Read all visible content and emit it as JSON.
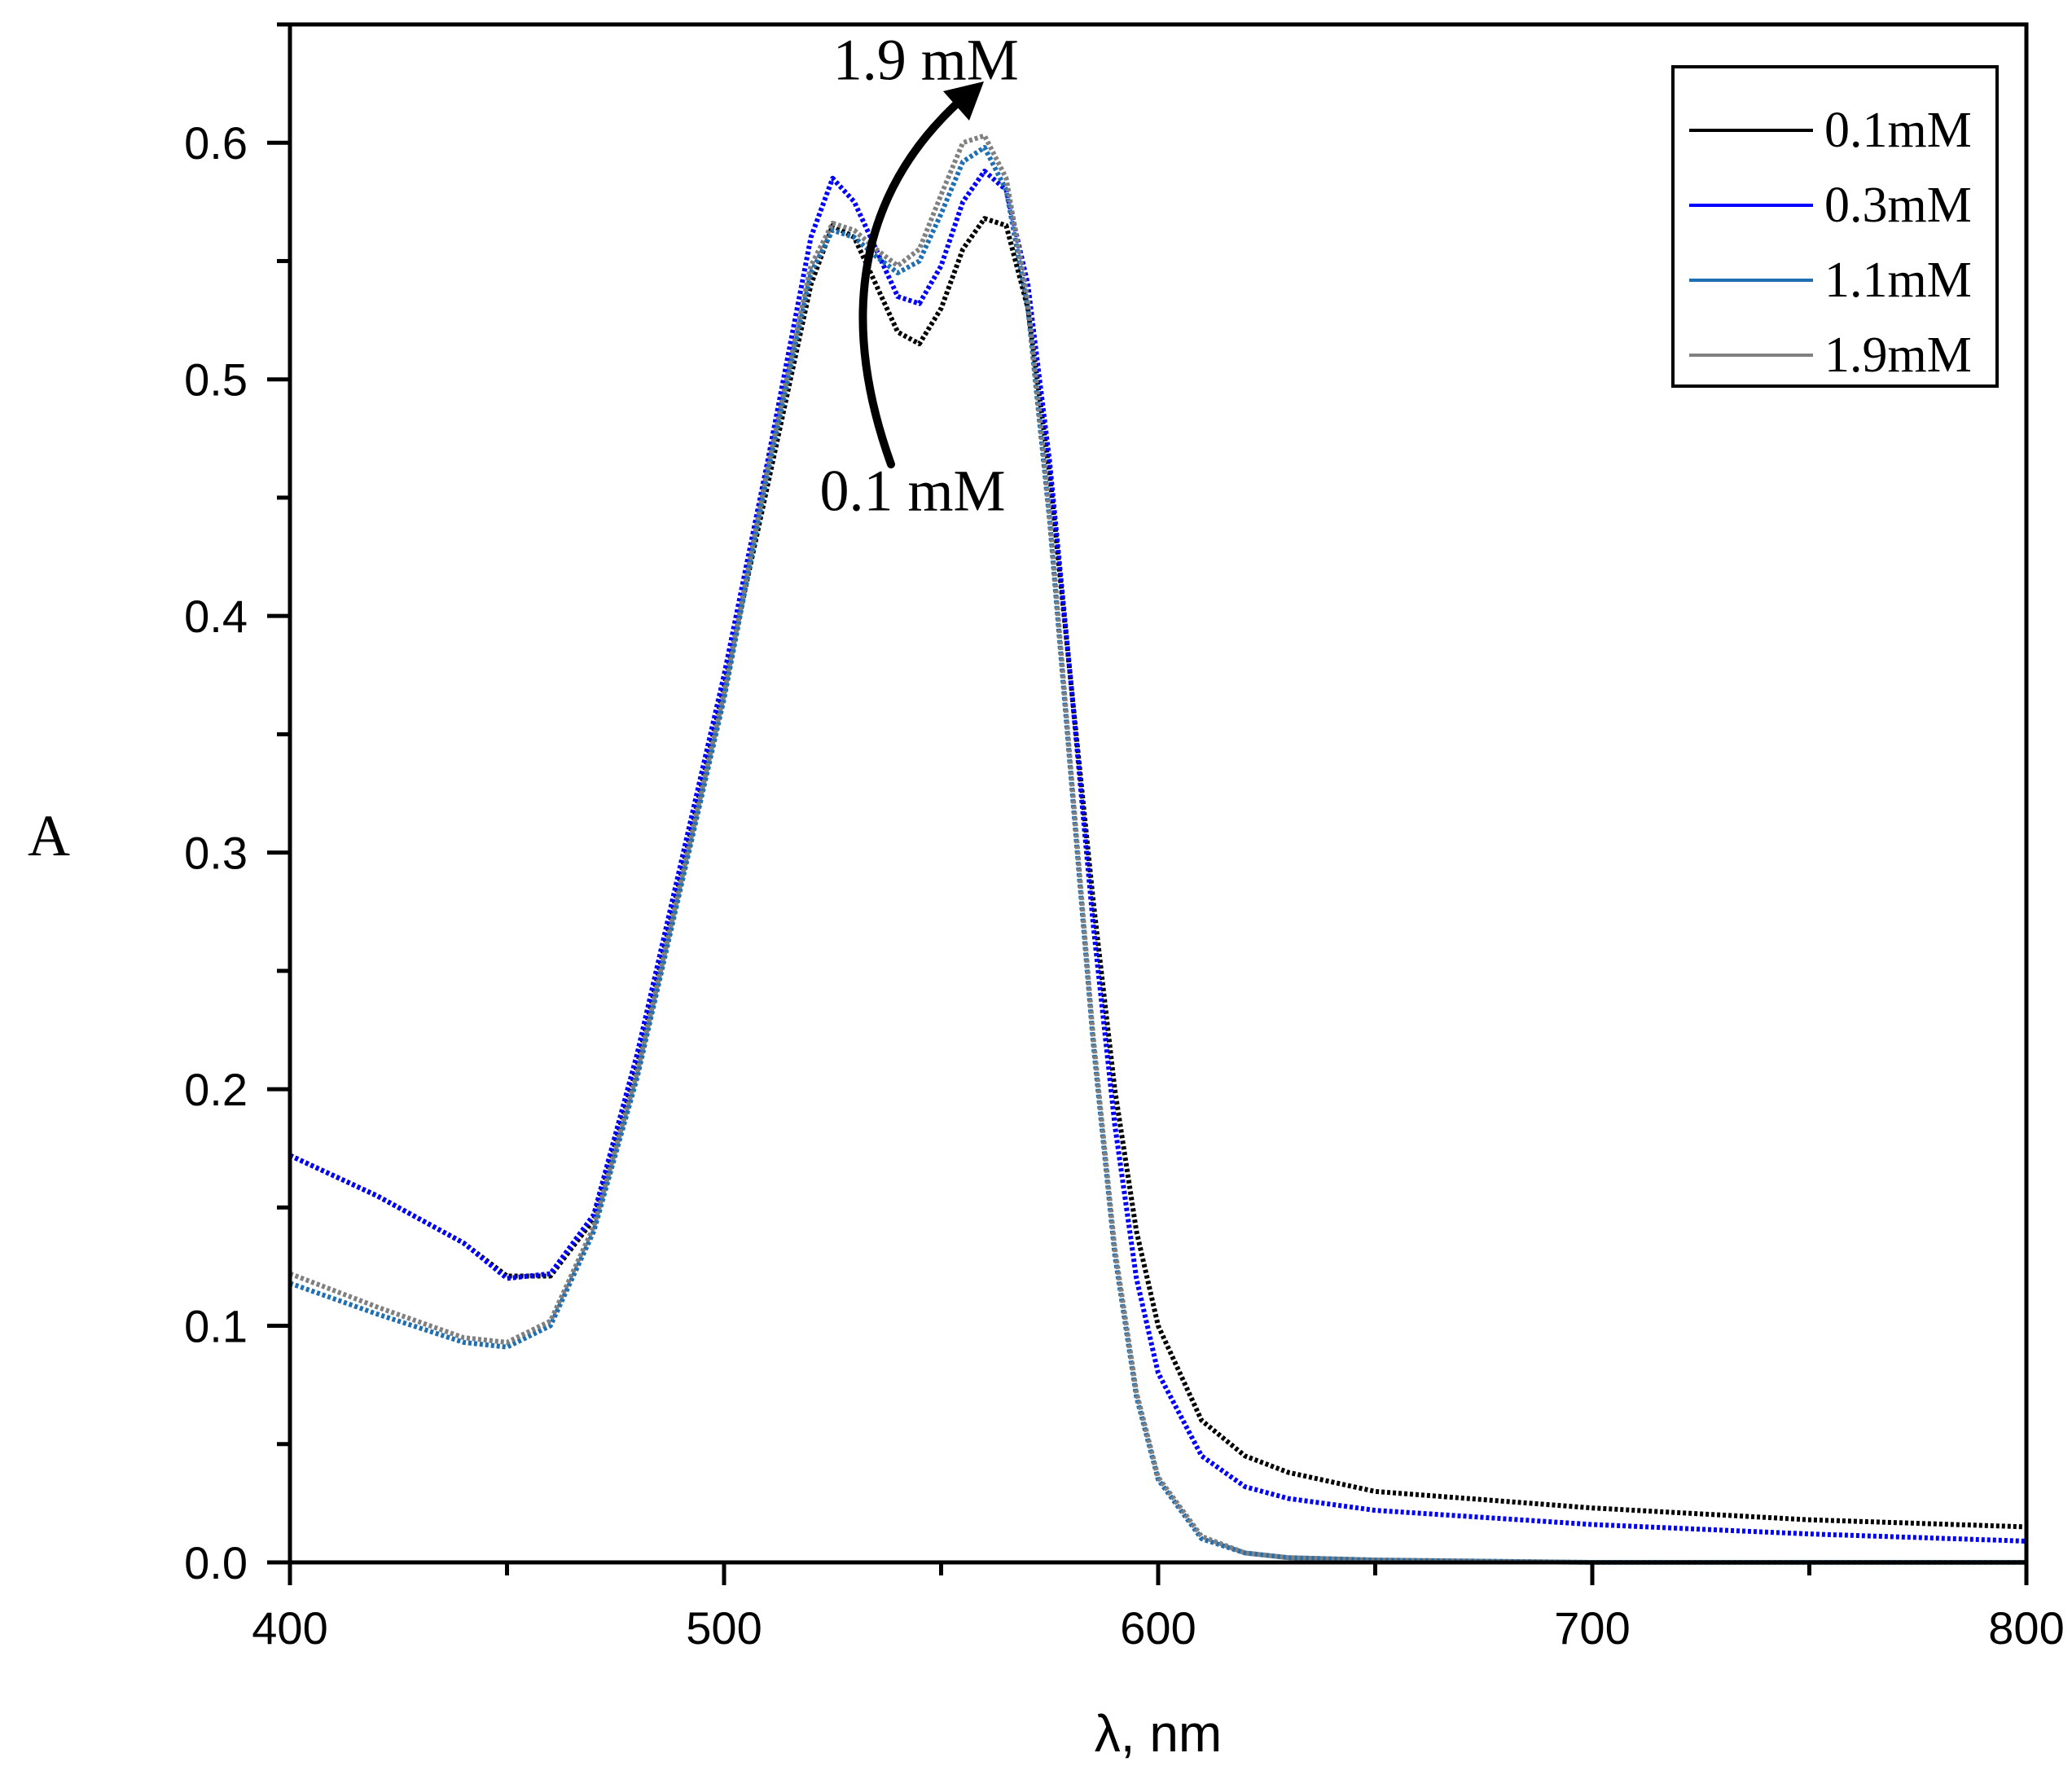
{
  "chart_data": {
    "type": "line",
    "title": "",
    "xlabel": "λ, nm",
    "ylabel": "A",
    "xlim": [
      400,
      800
    ],
    "ylim": [
      0.0,
      0.65
    ],
    "xticks": [
      400,
      500,
      600,
      700,
      800
    ],
    "xtick_labels": [
      "400",
      "500",
      "600",
      "700",
      "800"
    ],
    "yticks": [
      0.0,
      0.1,
      0.2,
      0.3,
      0.4,
      0.5,
      0.6
    ],
    "ytick_labels": [
      "0.0",
      "0.1",
      "0.2",
      "0.3",
      "0.4",
      "0.5",
      "0.6"
    ],
    "grid": false,
    "legend_position": "top-right",
    "series": [
      {
        "name": "0.1mM",
        "color": "#000000",
        "x": [
          400,
          420,
          440,
          450,
          460,
          470,
          480,
          490,
          500,
          510,
          520,
          525,
          530,
          535,
          540,
          545,
          550,
          555,
          560,
          565,
          570,
          575,
          580,
          585,
          590,
          595,
          600,
          610,
          620,
          630,
          650,
          700,
          750,
          800
        ],
        "y": [
          0.172,
          0.155,
          0.135,
          0.121,
          0.121,
          0.145,
          0.21,
          0.29,
          0.37,
          0.455,
          0.54,
          0.565,
          0.56,
          0.54,
          0.52,
          0.515,
          0.53,
          0.555,
          0.568,
          0.565,
          0.53,
          0.46,
          0.37,
          0.28,
          0.2,
          0.14,
          0.1,
          0.06,
          0.045,
          0.038,
          0.03,
          0.023,
          0.018,
          0.015
        ]
      },
      {
        "name": "0.3mM",
        "color": "#0000ff",
        "x": [
          400,
          420,
          440,
          450,
          460,
          470,
          480,
          490,
          500,
          510,
          520,
          525,
          530,
          535,
          540,
          545,
          550,
          555,
          560,
          565,
          570,
          575,
          580,
          585,
          590,
          595,
          600,
          610,
          620,
          630,
          650,
          700,
          750,
          800
        ],
        "y": [
          0.172,
          0.155,
          0.135,
          0.12,
          0.122,
          0.147,
          0.215,
          0.295,
          0.375,
          0.465,
          0.56,
          0.585,
          0.575,
          0.555,
          0.535,
          0.532,
          0.548,
          0.575,
          0.588,
          0.58,
          0.54,
          0.465,
          0.37,
          0.27,
          0.185,
          0.12,
          0.08,
          0.045,
          0.032,
          0.027,
          0.022,
          0.016,
          0.012,
          0.009
        ]
      },
      {
        "name": "1.1mM",
        "color": "#1f6fb3",
        "x": [
          400,
          420,
          440,
          450,
          460,
          470,
          480,
          490,
          500,
          510,
          520,
          525,
          530,
          535,
          540,
          545,
          550,
          555,
          560,
          565,
          570,
          575,
          580,
          585,
          590,
          595,
          600,
          610,
          620,
          630,
          650,
          700,
          750,
          800
        ],
        "y": [
          0.118,
          0.105,
          0.093,
          0.091,
          0.1,
          0.14,
          0.205,
          0.285,
          0.365,
          0.46,
          0.545,
          0.563,
          0.56,
          0.552,
          0.545,
          0.55,
          0.57,
          0.592,
          0.598,
          0.58,
          0.53,
          0.44,
          0.33,
          0.22,
          0.13,
          0.07,
          0.035,
          0.01,
          0.004,
          0.002,
          0.001,
          0.0,
          0.0,
          0.0
        ]
      },
      {
        "name": "1.9mM",
        "color": "#808080",
        "x": [
          400,
          420,
          440,
          450,
          460,
          470,
          480,
          490,
          500,
          510,
          520,
          525,
          530,
          535,
          540,
          545,
          550,
          555,
          560,
          565,
          570,
          575,
          580,
          585,
          590,
          595,
          600,
          610,
          620,
          630,
          650,
          700,
          750,
          800
        ],
        "y": [
          0.122,
          0.108,
          0.095,
          0.093,
          0.102,
          0.142,
          0.207,
          0.287,
          0.367,
          0.462,
          0.548,
          0.566,
          0.563,
          0.555,
          0.548,
          0.555,
          0.578,
          0.6,
          0.603,
          0.585,
          0.533,
          0.443,
          0.333,
          0.223,
          0.133,
          0.072,
          0.036,
          0.011,
          0.004,
          0.002,
          0.001,
          0.0,
          0.0,
          0.0
        ]
      }
    ],
    "annotations": [
      {
        "text": "1.9 mM",
        "x": 560,
        "y": 0.635
      },
      {
        "text": "0.1 mM",
        "x": 544,
        "y": 0.455
      }
    ]
  }
}
